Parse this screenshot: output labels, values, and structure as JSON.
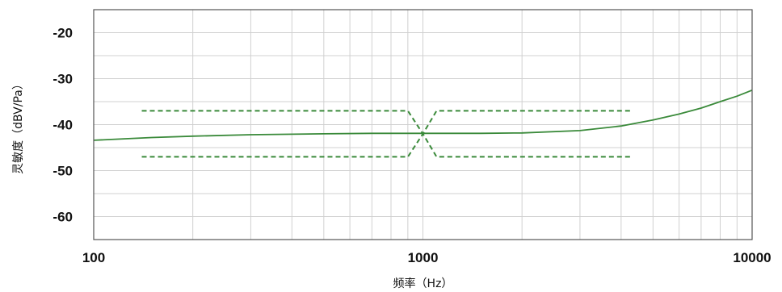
{
  "chart_data": {
    "type": "line",
    "title": "",
    "xlabel": "频率（Hz）",
    "ylabel": "灵敏度（dBV/Pa）",
    "x_scale": "log",
    "xlim": [
      100,
      10000
    ],
    "ylim": [
      -65,
      -15
    ],
    "x_ticks": [
      100,
      1000,
      10000
    ],
    "x_tick_labels": [
      "100",
      "1000",
      "10000"
    ],
    "y_ticks": [
      -20,
      -30,
      -40,
      -50,
      -60
    ],
    "y_tick_labels": [
      "-20",
      "-30",
      "-40",
      "-50",
      "-60"
    ],
    "grid": true,
    "legend": "none",
    "colors": {
      "line": "#3a8a3a",
      "grid": "#d0d0d0",
      "frame": "#555555"
    },
    "series": [
      {
        "style": "solid",
        "x": [
          100,
          150,
          200,
          300,
          500,
          700,
          1000,
          1500,
          2000,
          3000,
          4000,
          5000,
          6000,
          7000,
          8000,
          9000,
          10000
        ],
        "y": [
          -43.4,
          -42.8,
          -42.5,
          -42.2,
          -42.0,
          -41.9,
          -41.9,
          -41.9,
          -41.8,
          -41.3,
          -40.3,
          -39.0,
          -37.7,
          -36.4,
          -35.0,
          -33.8,
          -32.5
        ]
      },
      {
        "style": "dashed",
        "x": [
          140,
          900,
          1000,
          1100,
          4300
        ],
        "y": [
          -37,
          -37,
          -42,
          -37,
          -37
        ]
      },
      {
        "style": "dashed",
        "x": [
          140,
          900,
          1000,
          1100,
          4300
        ],
        "y": [
          -47,
          -47,
          -42,
          -47,
          -47
        ]
      }
    ]
  }
}
